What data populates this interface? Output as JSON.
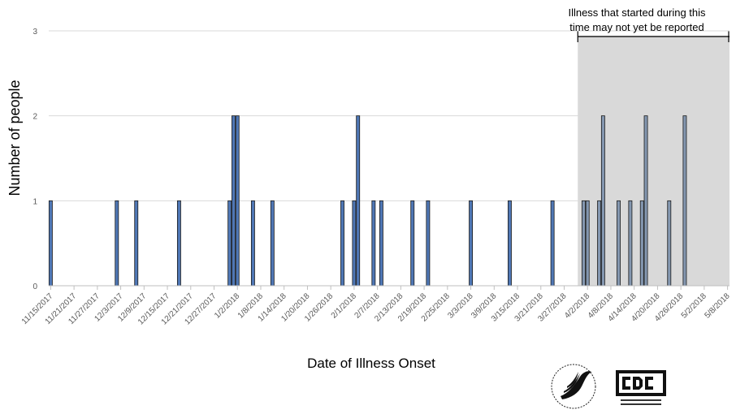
{
  "chart_data": {
    "type": "bar",
    "xlabel": "Date of Illness Onset",
    "ylabel": "Number of people",
    "ylim": [
      0,
      3
    ],
    "yticks": [
      0,
      1,
      2,
      3
    ],
    "grid": true,
    "x_start": "11/15/2017",
    "x_end": "5/9/2018",
    "xtick_labels": [
      "11/15/2017",
      "11/21/2017",
      "11/27/2017",
      "12/3/2017",
      "12/9/2017",
      "12/15/2017",
      "12/21/2017",
      "12/27/2017",
      "1/2/2018",
      "1/8/2018",
      "1/14/2018",
      "1/20/2018",
      "1/26/2018",
      "2/1/2018",
      "2/7/2018",
      "2/13/2018",
      "2/19/2018",
      "2/25/2018",
      "3/3/2018",
      "3/9/2018",
      "3/15/2018",
      "3/21/2018",
      "3/27/2018",
      "4/2/2018",
      "4/8/2018",
      "4/14/2018",
      "4/20/2018",
      "4/26/2018",
      "5/2/2018",
      "5/8/2018"
    ],
    "bars": [
      {
        "date": "11/15/2017",
        "value": 1
      },
      {
        "date": "12/2/2017",
        "value": 1
      },
      {
        "date": "12/7/2017",
        "value": 1
      },
      {
        "date": "12/18/2017",
        "value": 1
      },
      {
        "date": "12/31/2017",
        "value": 1
      },
      {
        "date": "1/1/2018",
        "value": 2
      },
      {
        "date": "1/2/2018",
        "value": 2
      },
      {
        "date": "1/6/2018",
        "value": 1
      },
      {
        "date": "1/11/2018",
        "value": 1
      },
      {
        "date": "1/29/2018",
        "value": 1
      },
      {
        "date": "2/1/2018",
        "value": 1
      },
      {
        "date": "2/2/2018",
        "value": 2
      },
      {
        "date": "2/6/2018",
        "value": 1
      },
      {
        "date": "2/8/2018",
        "value": 1
      },
      {
        "date": "2/16/2018",
        "value": 1
      },
      {
        "date": "2/20/2018",
        "value": 1
      },
      {
        "date": "3/3/2018",
        "value": 1
      },
      {
        "date": "3/13/2018",
        "value": 1
      },
      {
        "date": "3/24/2018",
        "value": 1
      },
      {
        "date": "4/1/2018",
        "value": 1
      },
      {
        "date": "4/2/2018",
        "value": 1
      },
      {
        "date": "4/5/2018",
        "value": 1
      },
      {
        "date": "4/6/2018",
        "value": 2
      },
      {
        "date": "4/10/2018",
        "value": 1
      },
      {
        "date": "4/13/2018",
        "value": 1
      },
      {
        "date": "4/16/2018",
        "value": 1
      },
      {
        "date": "4/17/2018",
        "value": 2
      },
      {
        "date": "4/23/2018",
        "value": 1
      },
      {
        "date": "4/27/2018",
        "value": 2
      }
    ],
    "shaded_region": {
      "start": "3/31/2018",
      "end": "5/9/2018",
      "label_line1": "Illness that started during this",
      "label_line2": "time may not yet be reported"
    },
    "colors": {
      "bar": "#4f77b5",
      "bar_shaded": "#8497b0",
      "bar_edge": "#1a1a1a",
      "shade": "#d9d9d9",
      "grid": "#d9d9d9"
    }
  }
}
